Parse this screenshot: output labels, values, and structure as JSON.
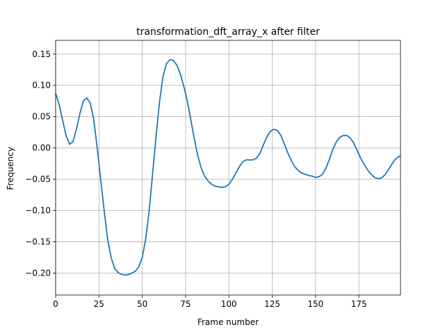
{
  "chart_data": {
    "type": "line",
    "title": "transformation_dft_array_x after filter",
    "x_label": "Frame number",
    "y_label": "Frequency",
    "grid": true,
    "xlim": [
      0,
      199
    ],
    "ylim": [
      -0.235,
      0.172
    ],
    "xticks": [
      0,
      25,
      50,
      75,
      100,
      125,
      150,
      175
    ],
    "yticks": [
      {
        "value": -0.2,
        "label": "−0.20"
      },
      {
        "value": -0.15,
        "label": "−0.15"
      },
      {
        "value": -0.1,
        "label": "−0.10"
      },
      {
        "value": -0.05,
        "label": "−0.05"
      },
      {
        "value": 0,
        "label": "0.00"
      },
      0.05,
      {
        "value": 0.1,
        "label": "0.10"
      },
      0.15
    ],
    "x": [
      0,
      2,
      4,
      6,
      8,
      10,
      12,
      14,
      16,
      18,
      20,
      22,
      24,
      26,
      28,
      30,
      32,
      34,
      36,
      38,
      40,
      42,
      44,
      46,
      48,
      50,
      52,
      54,
      56,
      58,
      60,
      62,
      64,
      66,
      68,
      70,
      72,
      74,
      76,
      78,
      80,
      82,
      84,
      86,
      88,
      90,
      92,
      94,
      96,
      98,
      100,
      102,
      104,
      106,
      108,
      110,
      112,
      114,
      116,
      118,
      120,
      122,
      124,
      126,
      128,
      130,
      132,
      134,
      136,
      138,
      140,
      142,
      144,
      146,
      148,
      150,
      152,
      154,
      156,
      158,
      160,
      162,
      164,
      166,
      168,
      170,
      172,
      174,
      176,
      178,
      180,
      182,
      184,
      186,
      188,
      190,
      192,
      194,
      196,
      198,
      199
    ],
    "series": [
      {
        "color": "#1f77b4",
        "values": [
          0.087,
          0.07,
          0.045,
          0.02,
          0.006,
          0.01,
          0.03,
          0.055,
          0.075,
          0.08,
          0.072,
          0.045,
          0.0,
          -0.05,
          -0.1,
          -0.145,
          -0.175,
          -0.192,
          -0.199,
          -0.202,
          -0.203,
          -0.202,
          -0.2,
          -0.197,
          -0.19,
          -0.175,
          -0.145,
          -0.1,
          -0.04,
          0.02,
          0.075,
          0.115,
          0.135,
          0.141,
          0.14,
          0.132,
          0.118,
          0.098,
          0.075,
          0.045,
          0.015,
          -0.012,
          -0.032,
          -0.045,
          -0.053,
          -0.058,
          -0.061,
          -0.062,
          -0.063,
          -0.062,
          -0.058,
          -0.05,
          -0.04,
          -0.03,
          -0.022,
          -0.019,
          -0.019,
          -0.019,
          -0.016,
          -0.008,
          0.006,
          0.018,
          0.027,
          0.03,
          0.028,
          0.02,
          0.006,
          -0.008,
          -0.02,
          -0.03,
          -0.036,
          -0.04,
          -0.042,
          -0.044,
          -0.045,
          -0.047,
          -0.046,
          -0.042,
          -0.032,
          -0.018,
          -0.002,
          0.01,
          0.017,
          0.02,
          0.02,
          0.016,
          0.008,
          -0.004,
          -0.016,
          -0.026,
          -0.035,
          -0.042,
          -0.047,
          -0.049,
          -0.048,
          -0.043,
          -0.035,
          -0.026,
          -0.018,
          -0.014,
          -0.012
        ]
      }
    ]
  }
}
